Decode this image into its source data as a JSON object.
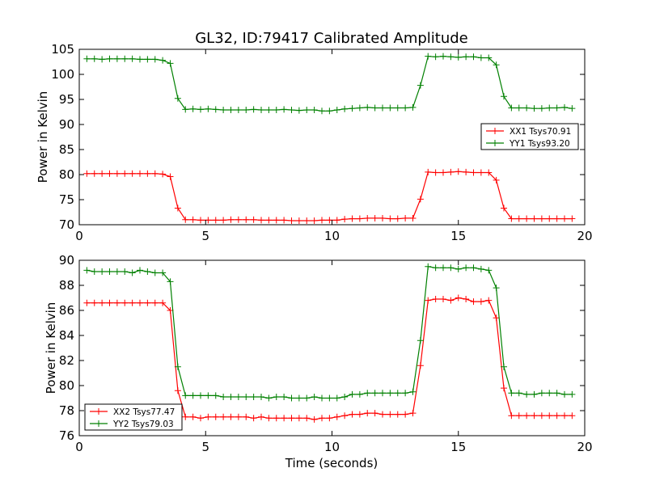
{
  "figure": {
    "title": "GL32, ID:79417 Calibrated Amplitude",
    "xlabel": "Time (seconds)"
  },
  "chart_data": [
    {
      "type": "line",
      "ylabel": "Power in Kelvin",
      "xlim": [
        0,
        20
      ],
      "ylim": [
        70,
        105
      ],
      "xticks": [
        0,
        5,
        10,
        15,
        20
      ],
      "yticks": [
        70,
        75,
        80,
        85,
        90,
        95,
        100,
        105
      ],
      "grid": false,
      "legend_position": "center-right",
      "x": [
        0.3,
        0.6,
        0.9,
        1.2,
        1.5,
        1.8,
        2.1,
        2.4,
        2.7,
        3.0,
        3.3,
        3.6,
        3.9,
        4.2,
        4.5,
        4.8,
        5.1,
        5.4,
        5.7,
        6.0,
        6.3,
        6.6,
        6.9,
        7.2,
        7.5,
        7.8,
        8.1,
        8.4,
        8.7,
        9.0,
        9.3,
        9.6,
        9.9,
        10.2,
        10.5,
        10.8,
        11.1,
        11.4,
        11.7,
        12.0,
        12.3,
        12.6,
        12.9,
        13.2,
        13.5,
        13.8,
        14.1,
        14.4,
        14.7,
        15.0,
        15.3,
        15.6,
        15.9,
        16.2,
        16.5,
        16.8,
        17.1,
        17.4,
        17.7,
        18.0,
        18.3,
        18.6,
        18.9,
        19.2,
        19.5
      ],
      "series": [
        {
          "name": "XX1 Tsys70.91",
          "color": "#ff0000",
          "values": [
            80.2,
            80.2,
            80.2,
            80.2,
            80.2,
            80.2,
            80.2,
            80.2,
            80.2,
            80.2,
            80.1,
            79.6,
            73.3,
            71.0,
            71.0,
            70.9,
            70.9,
            70.9,
            70.9,
            71.0,
            71.0,
            71.0,
            71.0,
            70.9,
            70.9,
            70.9,
            70.9,
            70.8,
            70.8,
            70.8,
            70.8,
            70.9,
            70.9,
            70.9,
            71.1,
            71.2,
            71.2,
            71.3,
            71.3,
            71.3,
            71.2,
            71.2,
            71.3,
            71.3,
            75.1,
            80.5,
            80.4,
            80.4,
            80.5,
            80.6,
            80.5,
            80.4,
            80.4,
            80.4,
            78.9,
            73.3,
            71.2,
            71.2,
            71.2,
            71.2,
            71.2,
            71.2,
            71.2,
            71.2,
            71.2
          ]
        },
        {
          "name": "YY1 Tsys93.20",
          "color": "#008000",
          "values": [
            103.1,
            103.1,
            103.0,
            103.1,
            103.1,
            103.1,
            103.1,
            103.0,
            103.0,
            103.0,
            102.8,
            102.2,
            95.2,
            93.0,
            93.1,
            93.0,
            93.1,
            93.0,
            92.9,
            92.9,
            92.9,
            92.9,
            93.0,
            92.9,
            92.9,
            92.9,
            93.0,
            92.9,
            92.8,
            92.9,
            92.9,
            92.7,
            92.7,
            92.9,
            93.1,
            93.2,
            93.3,
            93.4,
            93.3,
            93.3,
            93.3,
            93.3,
            93.3,
            93.4,
            97.8,
            103.6,
            103.5,
            103.6,
            103.5,
            103.4,
            103.5,
            103.5,
            103.3,
            103.3,
            101.9,
            95.6,
            93.3,
            93.3,
            93.3,
            93.2,
            93.2,
            93.3,
            93.3,
            93.4,
            93.2
          ]
        }
      ]
    },
    {
      "type": "line",
      "ylabel": "Power in Kelvin",
      "xlim": [
        0,
        20
      ],
      "ylim": [
        76,
        90
      ],
      "xticks": [
        0,
        5,
        10,
        15,
        20
      ],
      "yticks": [
        76,
        78,
        80,
        82,
        84,
        86,
        88,
        90
      ],
      "grid": false,
      "legend_position": "bottom-left",
      "x": [
        0.3,
        0.6,
        0.9,
        1.2,
        1.5,
        1.8,
        2.1,
        2.4,
        2.7,
        3.0,
        3.3,
        3.6,
        3.9,
        4.2,
        4.5,
        4.8,
        5.1,
        5.4,
        5.7,
        6.0,
        6.3,
        6.6,
        6.9,
        7.2,
        7.5,
        7.8,
        8.1,
        8.4,
        8.7,
        9.0,
        9.3,
        9.6,
        9.9,
        10.2,
        10.5,
        10.8,
        11.1,
        11.4,
        11.7,
        12.0,
        12.3,
        12.6,
        12.9,
        13.2,
        13.5,
        13.8,
        14.1,
        14.4,
        14.7,
        15.0,
        15.3,
        15.6,
        15.9,
        16.2,
        16.5,
        16.8,
        17.1,
        17.4,
        17.7,
        18.0,
        18.3,
        18.6,
        18.9,
        19.2,
        19.5
      ],
      "series": [
        {
          "name": "XX2 Tsys77.47",
          "color": "#ff0000",
          "values": [
            86.6,
            86.6,
            86.6,
            86.6,
            86.6,
            86.6,
            86.6,
            86.6,
            86.6,
            86.6,
            86.6,
            86.0,
            79.6,
            77.5,
            77.5,
            77.4,
            77.5,
            77.5,
            77.5,
            77.5,
            77.5,
            77.5,
            77.4,
            77.5,
            77.4,
            77.4,
            77.4,
            77.4,
            77.4,
            77.4,
            77.3,
            77.4,
            77.4,
            77.5,
            77.6,
            77.7,
            77.7,
            77.8,
            77.8,
            77.7,
            77.7,
            77.7,
            77.7,
            77.8,
            81.6,
            86.8,
            86.9,
            86.9,
            86.8,
            87.0,
            86.9,
            86.7,
            86.7,
            86.8,
            85.4,
            79.8,
            77.6,
            77.6,
            77.6,
            77.6,
            77.6,
            77.6,
            77.6,
            77.6,
            77.6
          ]
        },
        {
          "name": "YY2 Tsys79.03",
          "color": "#008000",
          "values": [
            89.2,
            89.1,
            89.1,
            89.1,
            89.1,
            89.1,
            89.0,
            89.2,
            89.1,
            89.0,
            89.0,
            88.3,
            81.5,
            79.2,
            79.2,
            79.2,
            79.2,
            79.2,
            79.1,
            79.1,
            79.1,
            79.1,
            79.1,
            79.1,
            79.0,
            79.1,
            79.1,
            79.0,
            79.0,
            79.0,
            79.1,
            79.0,
            79.0,
            79.0,
            79.1,
            79.3,
            79.3,
            79.4,
            79.4,
            79.4,
            79.4,
            79.4,
            79.4,
            79.5,
            83.6,
            89.5,
            89.4,
            89.4,
            89.4,
            89.3,
            89.4,
            89.4,
            89.3,
            89.2,
            87.8,
            81.5,
            79.4,
            79.4,
            79.3,
            79.3,
            79.4,
            79.4,
            79.4,
            79.3,
            79.3
          ]
        }
      ]
    }
  ]
}
